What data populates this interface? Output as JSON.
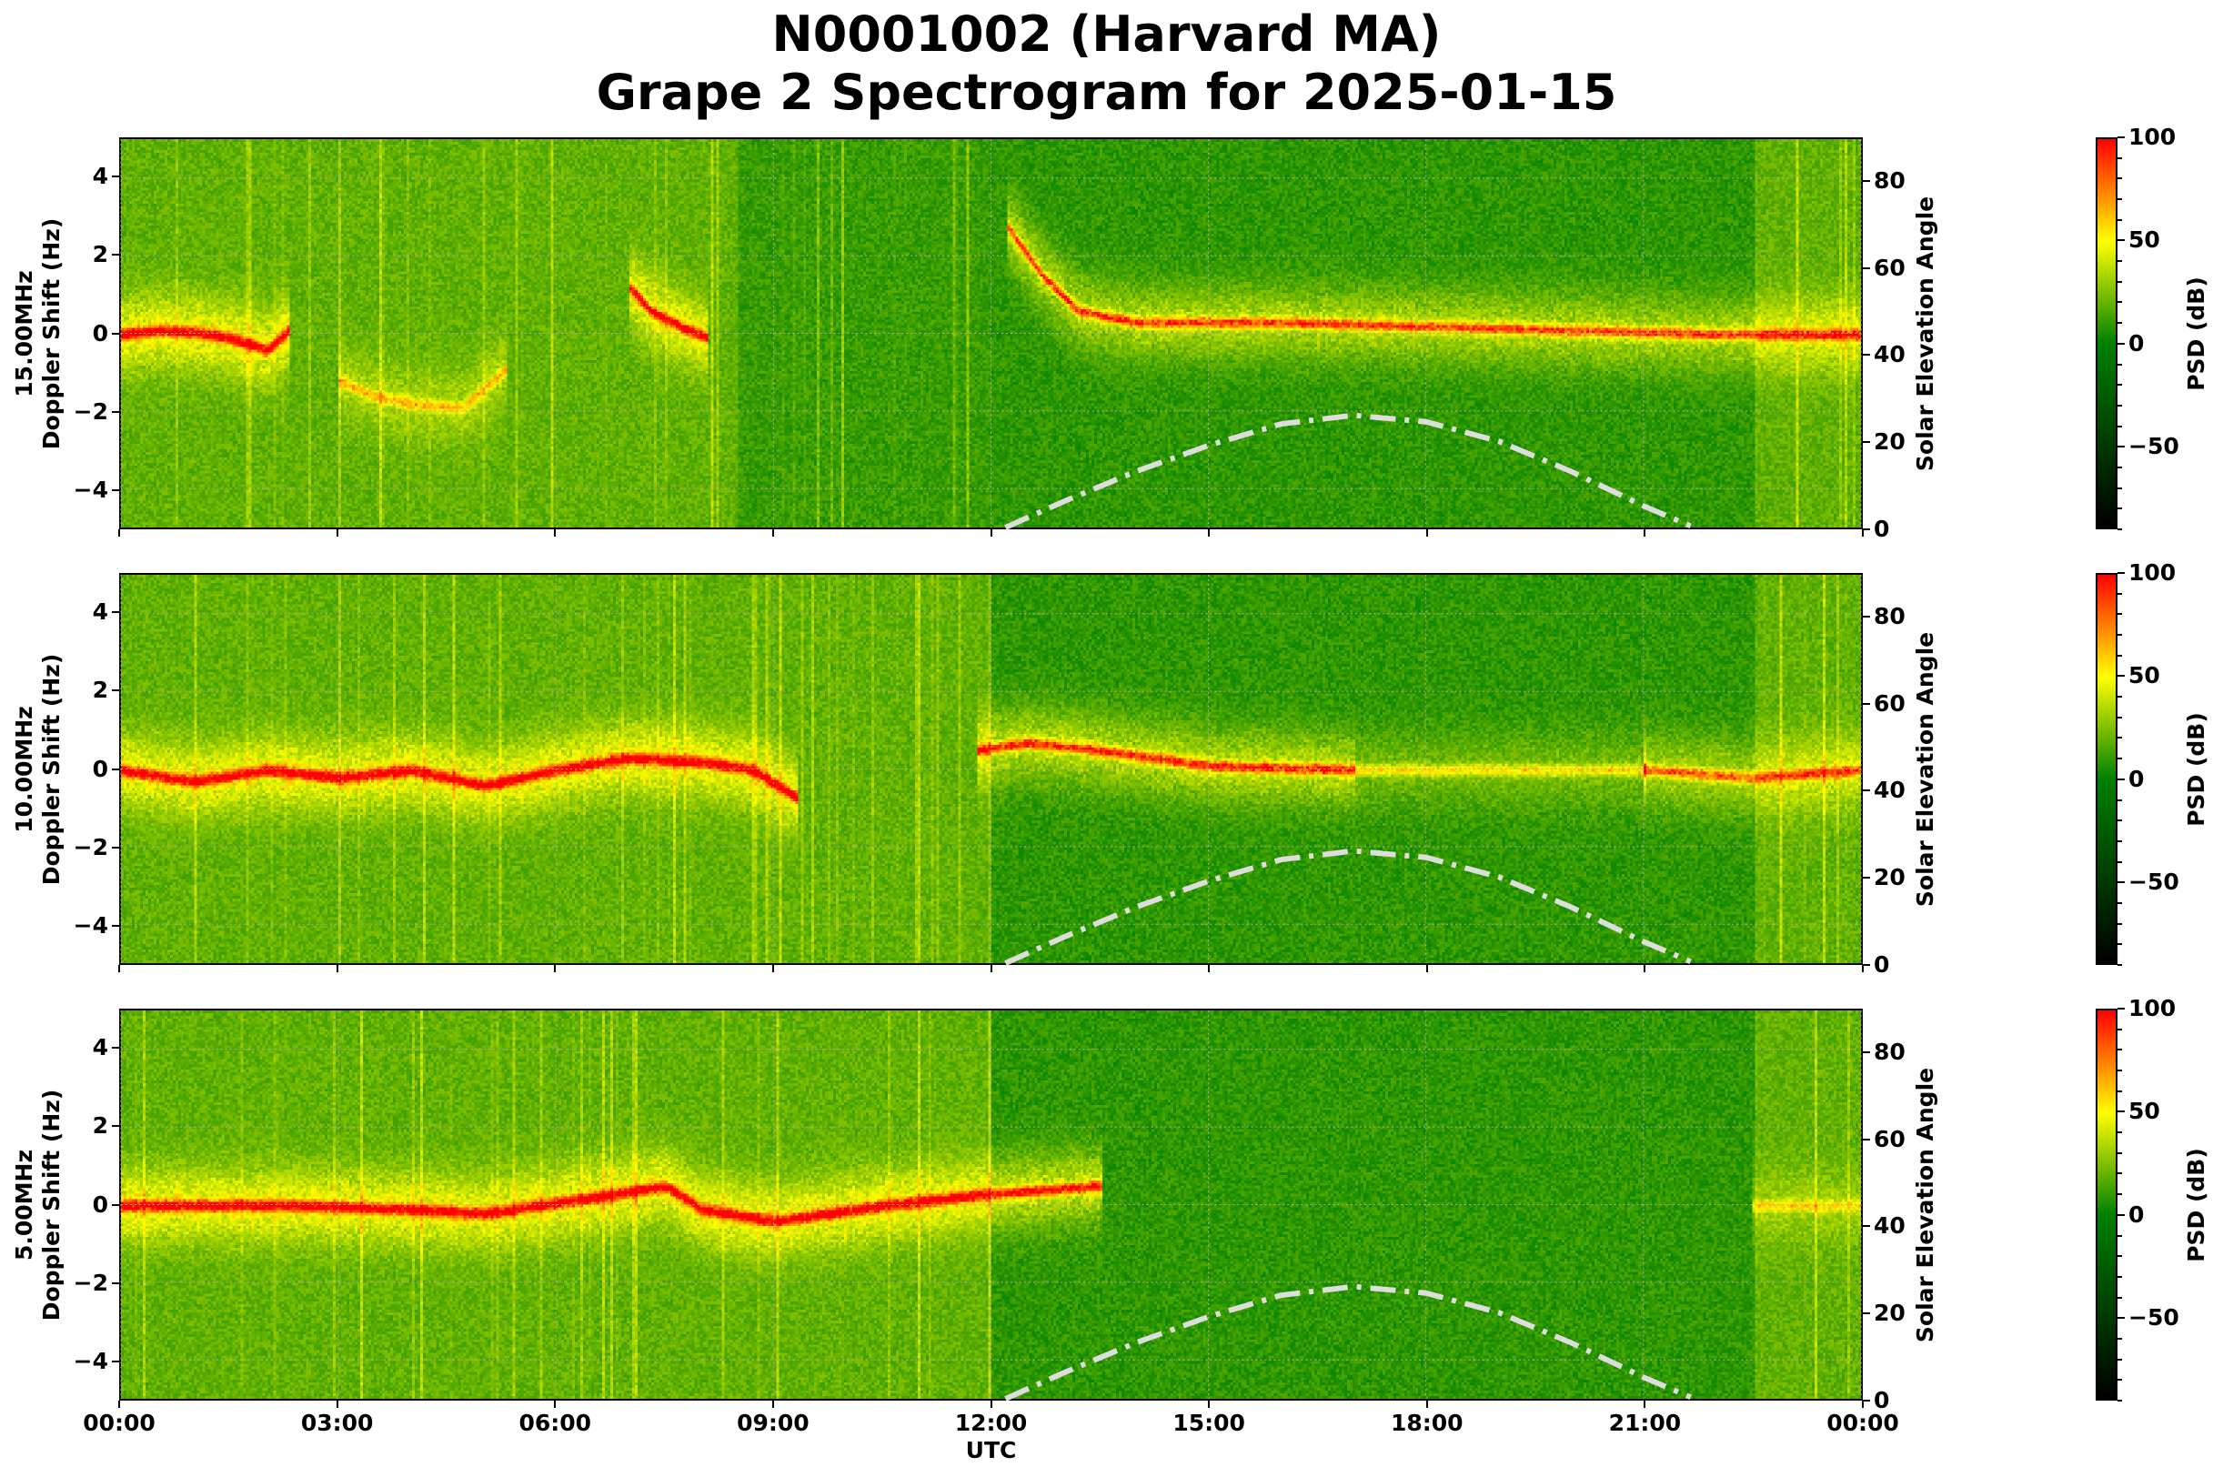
{
  "title": {
    "line1": "N0001002 (Harvard MA)",
    "line2": "Grape 2 Spectrogram for 2025-01-15"
  },
  "chart_data": [
    {
      "type": "heatmap",
      "band": "15.00MHz",
      "ylabel": "Doppler Shift (Hz)",
      "y2label": "Solar Elevation Angle",
      "xlabel": "",
      "ylim": [
        -5,
        5
      ],
      "y2lim": [
        0,
        90
      ],
      "xlim_hours": [
        0,
        24
      ],
      "yticks": [
        "4",
        "2",
        "0",
        "−2",
        "−4"
      ],
      "y2ticks": [
        "80",
        "60",
        "40",
        "20",
        "0"
      ],
      "grid": true,
      "doppler_trace": [
        {
          "intensity": 70,
          "points": [
            [
              0,
              0
            ],
            [
              0.5,
              0.1
            ],
            [
              1,
              0.05
            ],
            [
              1.5,
              -0.1
            ],
            [
              2,
              -0.4
            ],
            [
              2.3,
              0.1
            ]
          ]
        },
        {
          "intensity": 35,
          "points": [
            [
              3,
              -1.2
            ],
            [
              3.5,
              -1.6
            ],
            [
              4,
              -1.8
            ],
            [
              4.7,
              -1.9
            ],
            [
              5.3,
              -0.9
            ]
          ]
        },
        {
          "intensity": 65,
          "points": [
            [
              7,
              1.2
            ],
            [
              7.3,
              0.6
            ],
            [
              7.7,
              0.2
            ],
            [
              8.1,
              -0.1
            ]
          ]
        },
        {
          "intensity": 60,
          "points": [
            [
              12.2,
              2.8
            ],
            [
              12.7,
              1.5
            ],
            [
              13.2,
              0.6
            ],
            [
              14,
              0.3
            ],
            [
              16,
              0.3
            ],
            [
              18,
              0.2
            ],
            [
              20,
              0.1
            ],
            [
              22,
              0
            ],
            [
              24,
              0
            ]
          ]
        }
      ],
      "colorbar": {
        "label": "PSD (dB)",
        "range": [
          -90,
          100
        ],
        "ticks": [
          "100",
          "50",
          "0",
          "−50"
        ]
      }
    },
    {
      "type": "heatmap",
      "band": "10.00MHz",
      "ylabel": "Doppler Shift (Hz)",
      "y2label": "Solar Elevation Angle",
      "xlabel": "",
      "ylim": [
        -5,
        5
      ],
      "y2lim": [
        0,
        90
      ],
      "xlim_hours": [
        0,
        24
      ],
      "yticks": [
        "4",
        "2",
        "0",
        "−2",
        "−4"
      ],
      "y2ticks": [
        "80",
        "60",
        "40",
        "20",
        "0"
      ],
      "grid": true,
      "doppler_trace": [
        {
          "intensity": 70,
          "points": [
            [
              0,
              0
            ],
            [
              1,
              -0.3
            ],
            [
              2,
              0
            ],
            [
              3,
              -0.2
            ],
            [
              4,
              0
            ],
            [
              5,
              -0.4
            ],
            [
              6,
              0
            ],
            [
              7,
              0.3
            ],
            [
              8,
              0.2
            ],
            [
              8.7,
              0
            ],
            [
              9.3,
              -0.7
            ]
          ]
        },
        {
          "intensity": 65,
          "points": [
            [
              11.8,
              0.5
            ],
            [
              12.5,
              0.7
            ],
            [
              13.5,
              0.5
            ],
            [
              15,
              0.1
            ],
            [
              17,
              0
            ]
          ]
        },
        {
          "intensity": 35,
          "points": [
            [
              17,
              0
            ],
            [
              21,
              0
            ]
          ]
        },
        {
          "intensity": 55,
          "points": [
            [
              21,
              0
            ],
            [
              22.5,
              -0.2
            ],
            [
              24,
              0
            ]
          ]
        }
      ],
      "colorbar": {
        "label": "PSD (dB)",
        "range": [
          -90,
          100
        ],
        "ticks": [
          "100",
          "50",
          "0",
          "−50"
        ]
      }
    },
    {
      "type": "heatmap",
      "band": "5.00MHz",
      "ylabel": "Doppler Shift (Hz)",
      "y2label": "Solar Elevation Angle",
      "xlabel": "UTC",
      "ylim": [
        -5,
        5
      ],
      "y2lim": [
        0,
        90
      ],
      "xlim_hours": [
        0,
        24
      ],
      "xticks": [
        "00:00",
        "03:00",
        "06:00",
        "09:00",
        "12:00",
        "15:00",
        "18:00",
        "21:00",
        "00:00"
      ],
      "yticks": [
        "4",
        "2",
        "0",
        "−2",
        "−4"
      ],
      "y2ticks": [
        "80",
        "60",
        "40",
        "20",
        "0"
      ],
      "grid": true,
      "doppler_trace": [
        {
          "intensity": 70,
          "points": [
            [
              0,
              0
            ],
            [
              2.5,
              0
            ],
            [
              4,
              -0.1
            ],
            [
              5,
              -0.2
            ],
            [
              6.5,
              0.2
            ],
            [
              7.5,
              0.5
            ],
            [
              8,
              -0.1
            ],
            [
              9,
              -0.4
            ],
            [
              10.5,
              0
            ],
            [
              12,
              0.3
            ],
            [
              13.5,
              0.5
            ]
          ]
        },
        {
          "intensity": 30,
          "points": [
            [
              22.5,
              0
            ],
            [
              24,
              0
            ]
          ]
        }
      ],
      "colorbar": {
        "label": "PSD (dB)",
        "range": [
          -90,
          100
        ],
        "ticks": [
          "100",
          "50",
          "0",
          "−50"
        ]
      }
    }
  ],
  "solar_elevation": {
    "style": "dash-dot",
    "color": "#dddddd",
    "points": [
      [
        12.2,
        0
      ],
      [
        13,
        6
      ],
      [
        14,
        13
      ],
      [
        15,
        19
      ],
      [
        16,
        24
      ],
      [
        17,
        26
      ],
      [
        18,
        24.5
      ],
      [
        19,
        20
      ],
      [
        20,
        13
      ],
      [
        21,
        5
      ],
      [
        21.7,
        0
      ]
    ]
  },
  "colormap": {
    "stops": [
      [
        -90,
        "#000000"
      ],
      [
        0,
        "#008000"
      ],
      [
        50,
        "#ffff00"
      ],
      [
        100,
        "#ff0000"
      ]
    ]
  }
}
